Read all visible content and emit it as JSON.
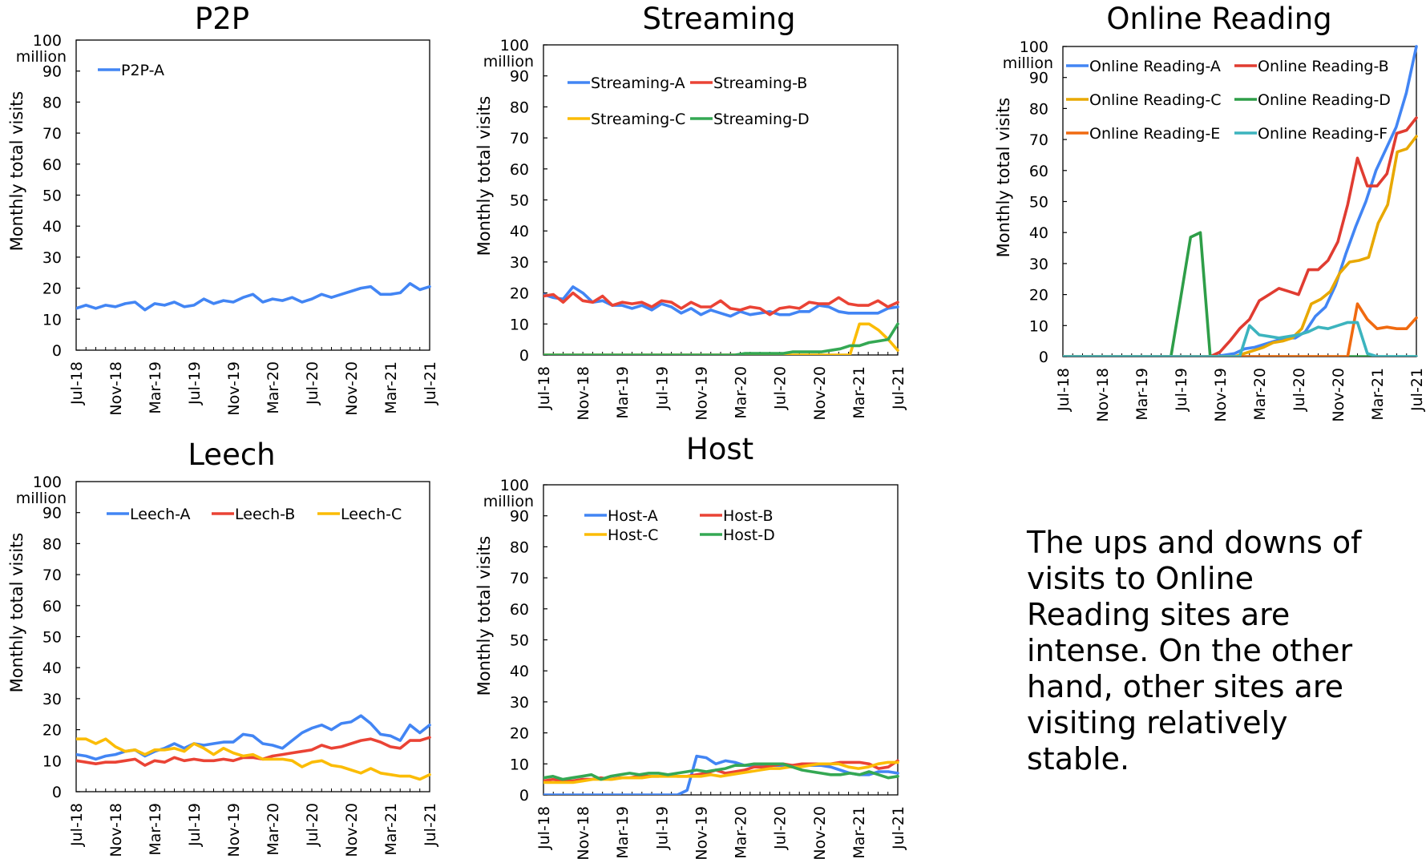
{
  "x_ticks": [
    "Jul-18",
    "Nov-18",
    "Mar-19",
    "Jul-19",
    "Nov-19",
    "Mar-20",
    "Jul-20",
    "Nov-20",
    "Mar-21",
    "Jul-21"
  ],
  "y_ticks": [
    "0",
    "10",
    "20",
    "30",
    "40",
    "50",
    "60",
    "70",
    "80",
    "90",
    "100"
  ],
  "y_unit": "million",
  "ylabel": "Monthly total visits",
  "note": "The ups and downs of visits to Online Reading sites are intense. On the other hand, other sites are visiting relatively stable.",
  "chart_data": [
    {
      "type": "line",
      "title": "P2P",
      "ylabel": "Monthly total visits",
      "ylim": [
        0,
        100
      ],
      "x_start": "Jul-18",
      "x_end": "Jul-21",
      "legend": "top-left",
      "series": [
        {
          "name": "P2P-A",
          "color": "#4285F4",
          "values": [
            13.5,
            14.5,
            13.5,
            14.5,
            14,
            15,
            15.5,
            13,
            15,
            14.5,
            15.5,
            14,
            14.5,
            16.5,
            15,
            16,
            15.5,
            17,
            18,
            15.5,
            16.5,
            16,
            17,
            15.5,
            16.5,
            18,
            17,
            18,
            19,
            20,
            20.5,
            18,
            18,
            18.5,
            21.5,
            19.5,
            20.5
          ]
        }
      ]
    },
    {
      "type": "line",
      "title": "Streaming",
      "ylabel": "Monthly total visits",
      "ylim": [
        0,
        100
      ],
      "x_start": "Jul-18",
      "x_end": "Jul-21",
      "legend": "top-left",
      "series": [
        {
          "name": "Streaming-A",
          "color": "#4285F4",
          "values": [
            19.5,
            18.5,
            18,
            22,
            20,
            17,
            17.5,
            16,
            16,
            15,
            16,
            14.5,
            16.5,
            15.5,
            13.5,
            15,
            13,
            14.5,
            13.5,
            12.5,
            14,
            13,
            13.5,
            14,
            13,
            13,
            14,
            14,
            16,
            15.5,
            14,
            13.5,
            13.5,
            13.5,
            13.5,
            15,
            15.5
          ]
        },
        {
          "name": "Streaming-B",
          "color": "#EA4335",
          "values": [
            19,
            19.5,
            17,
            20,
            17.5,
            17,
            19,
            16,
            17,
            16.5,
            17,
            15.5,
            17.5,
            17,
            15,
            17,
            15.5,
            15.5,
            17.5,
            15,
            14.5,
            15.5,
            15,
            13,
            15,
            15.5,
            15,
            17,
            16.5,
            16.5,
            18.5,
            16.5,
            16,
            16,
            17.5,
            15.5,
            17
          ]
        },
        {
          "name": "Streaming-C",
          "color": "#FBBC05",
          "values": [
            0,
            0,
            0,
            0,
            0,
            0,
            0,
            0,
            0,
            0,
            0,
            0,
            0,
            0,
            0,
            0,
            0,
            0,
            0,
            0,
            0,
            0,
            0,
            0,
            0,
            0,
            0,
            0,
            0,
            0,
            0,
            0,
            0,
            10,
            10,
            8,
            5,
            1.5
          ]
        },
        {
          "name": "Streaming-D",
          "color": "#34A853",
          "values": [
            0,
            0,
            0,
            0,
            0,
            0,
            0,
            0,
            0,
            0,
            0,
            0,
            0,
            0,
            0,
            0,
            0,
            0,
            0,
            0,
            0,
            0.5,
            0.5,
            0.5,
            0.5,
            0.5,
            1,
            1,
            1,
            1,
            1.5,
            2,
            3,
            3,
            4,
            4.5,
            5,
            10
          ]
        }
      ]
    },
    {
      "type": "line",
      "title": "Online Reading",
      "ylabel": "Monthly total visits",
      "ylim": [
        0,
        100
      ],
      "x_start": "Jul-18",
      "x_end": "Jul-21",
      "legend": "top-left",
      "series": [
        {
          "name": "Online Reading-A",
          "color": "#4285F4",
          "values": [
            0,
            0,
            0,
            0,
            0,
            0,
            0,
            0,
            0,
            0,
            0,
            0,
            0,
            0,
            0,
            0,
            0.5,
            1,
            2.5,
            3,
            4,
            5,
            6,
            6,
            8,
            13,
            16,
            23,
            33,
            42,
            50,
            60,
            67,
            74,
            85,
            100
          ]
        },
        {
          "name": "Online Reading-B",
          "color": "#E03C31",
          "values": [
            0,
            0,
            0,
            0,
            0,
            0,
            0,
            0,
            0,
            0,
            0,
            0,
            0,
            0,
            0,
            0,
            1.5,
            5,
            9,
            12,
            18,
            20,
            22,
            21,
            20,
            28,
            28,
            31,
            37,
            49,
            64,
            55,
            55,
            59,
            72,
            73,
            77
          ]
        },
        {
          "name": "Online Reading-C",
          "color": "#E8A800",
          "values": [
            0,
            0,
            0,
            0,
            0,
            0,
            0,
            0,
            0,
            0,
            0,
            0,
            0,
            0,
            0,
            0,
            0,
            0,
            0,
            1,
            2,
            3,
            4.5,
            5,
            6,
            9,
            17,
            18.5,
            21,
            27,
            30.5,
            31,
            32,
            43,
            49,
            66,
            67,
            71
          ]
        },
        {
          "name": "Online Reading-D",
          "color": "#2E9E48",
          "values": [
            0,
            0,
            0,
            0,
            0,
            0,
            0,
            0,
            0,
            0,
            0,
            0,
            19,
            38.5,
            40,
            0,
            0,
            0,
            0,
            0,
            0,
            0,
            0,
            0,
            0,
            0,
            0,
            0,
            0,
            0,
            0,
            0,
            0,
            0,
            0,
            0,
            0
          ]
        },
        {
          "name": "Online Reading-E",
          "color": "#F06A10",
          "values": [
            0,
            0,
            0,
            0,
            0,
            0,
            0,
            0,
            0,
            0,
            0,
            0,
            0,
            0,
            0,
            0,
            0,
            0,
            0,
            0,
            0,
            0,
            0,
            0,
            0,
            0,
            0,
            0,
            0,
            0,
            17,
            12,
            9,
            9.5,
            9,
            9,
            12.5
          ]
        },
        {
          "name": "Online Reading-F",
          "color": "#3CB4BE",
          "values": [
            0,
            0,
            0,
            0,
            0,
            0,
            0,
            0,
            0,
            0,
            0,
            0,
            0,
            0,
            0,
            0,
            0,
            0,
            0,
            10,
            7,
            6.5,
            6,
            6.5,
            7,
            8,
            9.5,
            9,
            10,
            11,
            11,
            1,
            0,
            0,
            0,
            0,
            0
          ]
        }
      ]
    },
    {
      "type": "line",
      "title": "Leech",
      "ylabel": "Monthly total visits",
      "ylim": [
        0,
        100
      ],
      "x_start": "Jul-18",
      "x_end": "Jul-21",
      "legend": "top",
      "series": [
        {
          "name": "Leech-A",
          "color": "#4285F4",
          "values": [
            12,
            11.5,
            10.5,
            11.5,
            12,
            13,
            13.5,
            11.5,
            13,
            14,
            15.5,
            14,
            15.5,
            15,
            15.5,
            16,
            16,
            18.5,
            18,
            15.5,
            15,
            14,
            16.5,
            19,
            20.5,
            21.5,
            20,
            22,
            22.5,
            24.5,
            22,
            18.5,
            18,
            16.5,
            21.5,
            19,
            21.5
          ]
        },
        {
          "name": "Leech-B",
          "color": "#EA4335",
          "values": [
            10,
            9.5,
            9,
            9.5,
            9.5,
            10,
            10.5,
            8.5,
            10,
            9.5,
            11,
            10,
            10.5,
            10,
            10,
            10.5,
            10,
            11,
            11,
            10.5,
            11.5,
            12,
            12.5,
            13,
            13.5,
            15,
            14,
            14.5,
            15.5,
            16.5,
            17,
            16,
            14.5,
            14,
            16.5,
            16.5,
            17.5
          ]
        },
        {
          "name": "Leech-C",
          "color": "#FBBC05",
          "values": [
            17,
            17,
            15.5,
            17,
            14.5,
            13,
            13.5,
            12,
            13.5,
            13.5,
            14,
            13,
            15.5,
            14,
            12,
            14,
            12.5,
            11.5,
            12,
            10.5,
            10.5,
            10.5,
            10,
            8,
            9.5,
            10,
            8.5,
            8,
            7,
            6,
            7.5,
            6,
            5.5,
            5,
            5,
            4,
            5.5
          ]
        }
      ]
    },
    {
      "type": "line",
      "title": "Host",
      "ylabel": "Monthly total visits",
      "ylim": [
        0,
        100
      ],
      "x_start": "Jul-18",
      "x_end": "Jul-21",
      "legend": "top-left",
      "series": [
        {
          "name": "Host-A",
          "color": "#4285F4",
          "values": [
            0,
            0,
            0,
            0,
            0,
            0,
            0,
            0,
            0,
            0,
            0,
            0,
            0,
            0,
            0,
            1.5,
            12.5,
            12,
            10,
            11,
            10.5,
            9.5,
            9.5,
            9.5,
            9.5,
            9.5,
            9.5,
            9.5,
            9.5,
            9.5,
            9,
            8,
            7,
            6.5,
            6.5,
            7.5,
            7.5,
            7
          ]
        },
        {
          "name": "Host-B",
          "color": "#EA4335",
          "values": [
            4.5,
            5,
            4.5,
            4.5,
            5,
            5,
            5.5,
            5,
            5.5,
            5.5,
            6,
            6,
            6,
            6.5,
            6,
            6,
            6.5,
            7,
            8,
            7,
            7.5,
            8,
            9,
            9,
            9.5,
            10,
            9.5,
            10,
            10,
            10,
            10,
            10.5,
            10.5,
            10.5,
            10,
            8.5,
            9,
            11
          ]
        },
        {
          "name": "Host-C",
          "color": "#FBBC05",
          "values": [
            4,
            4,
            4,
            4,
            4.5,
            5,
            5,
            5,
            5.5,
            5.5,
            5.5,
            6,
            6,
            6,
            6,
            6,
            6,
            6.5,
            6,
            6.5,
            7,
            7.5,
            8,
            8.5,
            8.5,
            9,
            9,
            9.5,
            10,
            10,
            10,
            9,
            8.5,
            9,
            10,
            10.5,
            10.5
          ]
        },
        {
          "name": "Host-D",
          "color": "#34A853",
          "values": [
            5.5,
            6,
            5,
            5.5,
            6,
            6.5,
            5,
            6,
            6.5,
            7,
            6.5,
            7,
            7,
            6.5,
            7,
            7.5,
            8,
            7.5,
            8,
            8.5,
            9.5,
            9.5,
            10,
            10,
            10,
            10,
            9,
            8,
            7.5,
            7,
            6.5,
            6.5,
            7,
            6.5,
            7.5,
            6.5,
            5.5,
            6
          ]
        }
      ]
    }
  ]
}
